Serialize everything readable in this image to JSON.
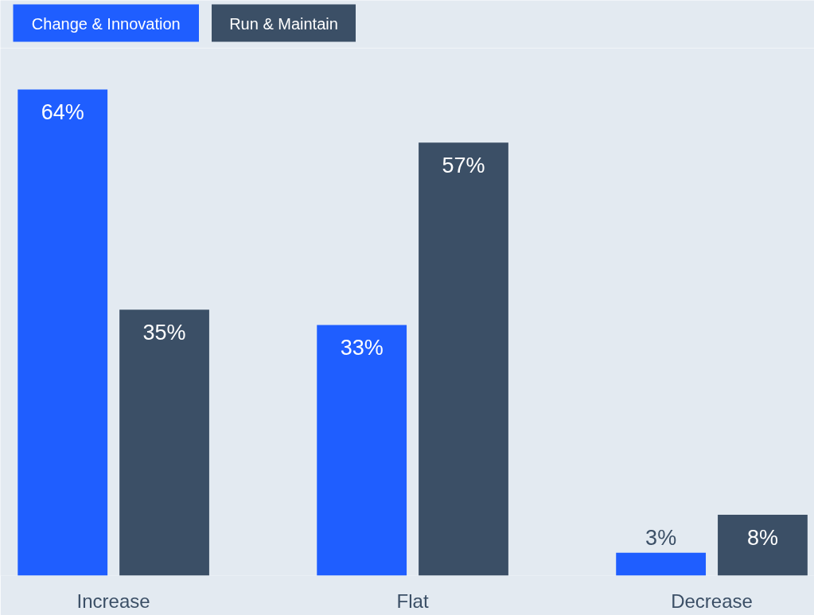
{
  "chart_data": {
    "type": "bar",
    "categories": [
      "Increase",
      "Flat",
      "Decrease"
    ],
    "series": [
      {
        "name": "Change & Innovation",
        "color": "#1f5eff",
        "values": [
          64,
          33,
          3
        ],
        "value_labels": [
          "64%",
          "33%",
          "3%"
        ]
      },
      {
        "name": "Run & Maintain",
        "color": "#3b4f66",
        "values": [
          35,
          57,
          8
        ],
        "value_labels": [
          "35%",
          "57%",
          "8%"
        ]
      }
    ],
    "legend": "top left",
    "grid": false
  }
}
